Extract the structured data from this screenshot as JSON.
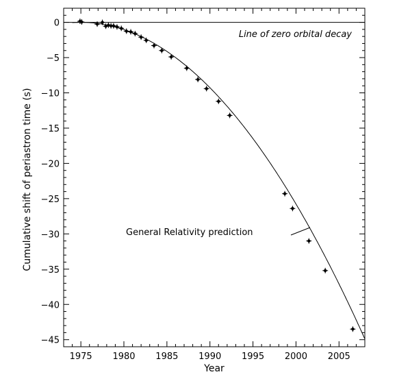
{
  "chart_data": {
    "type": "scatter",
    "title": "",
    "xlabel": "Year",
    "ylabel": "Cumulative shift of periastron time (s)",
    "xlim": [
      1973,
      2008
    ],
    "ylim": [
      -46,
      2
    ],
    "x_ticks": [
      1975,
      1980,
      1985,
      1990,
      1995,
      2000,
      2005
    ],
    "y_ticks": [
      0,
      -5,
      -10,
      -15,
      -20,
      -25,
      -30,
      -35,
      -40,
      -45
    ],
    "x_tick_labels": [
      "1975",
      "1980",
      "1985",
      "1990",
      "1995",
      "2000",
      "2005"
    ],
    "y_tick_labels": [
      "0",
      "−5",
      "−10",
      "−15",
      "−20",
      "−25",
      "−30",
      "−35",
      "−40",
      "−45"
    ],
    "grid": false,
    "legend": "none",
    "annotations": {
      "zero_line_label": "Line of zero orbital decay",
      "gr_label": "General Relativity prediction"
    },
    "series": [
      {
        "type": "curve",
        "y_at_1975": 0,
        "y_at_2005": -37.1,
        "color": "#000000"
      },
      {
        "type": "line",
        "y": 0,
        "color": "#000000"
      },
      {
        "type": "scatter",
        "marker": "filled-diamond-with-error-bars",
        "color": "#000000",
        "points": [
          {
            "x": 1974.9,
            "y": 0.15
          },
          {
            "x": 1975.1,
            "y": 0.05
          },
          {
            "x": 1976.9,
            "y": -0.25
          },
          {
            "x": 1977.5,
            "y": 0.0
          },
          {
            "x": 1977.9,
            "y": -0.55
          },
          {
            "x": 1978.2,
            "y": -0.4
          },
          {
            "x": 1978.5,
            "y": -0.5
          },
          {
            "x": 1978.8,
            "y": -0.5
          },
          {
            "x": 1979.2,
            "y": -0.65
          },
          {
            "x": 1979.7,
            "y": -0.85
          },
          {
            "x": 1980.3,
            "y": -1.25
          },
          {
            "x": 1980.8,
            "y": -1.35
          },
          {
            "x": 1981.3,
            "y": -1.6
          },
          {
            "x": 1982.0,
            "y": -2.1
          },
          {
            "x": 1982.6,
            "y": -2.55
          },
          {
            "x": 1983.5,
            "y": -3.3
          },
          {
            "x": 1984.4,
            "y": -4.0
          },
          {
            "x": 1985.5,
            "y": -4.9
          },
          {
            "x": 1987.3,
            "y": -6.5
          },
          {
            "x": 1988.6,
            "y": -8.1
          },
          {
            "x": 1989.6,
            "y": -9.4
          },
          {
            "x": 1991.0,
            "y": -11.2
          },
          {
            "x": 1992.3,
            "y": -13.2
          },
          {
            "x": 1998.7,
            "y": -24.3
          },
          {
            "x": 1999.6,
            "y": -26.4
          },
          {
            "x": 2001.5,
            "y": -31.0
          },
          {
            "x": 2003.4,
            "y": -35.2
          },
          {
            "x": 2006.6,
            "y": -43.5
          }
        ]
      }
    ]
  }
}
